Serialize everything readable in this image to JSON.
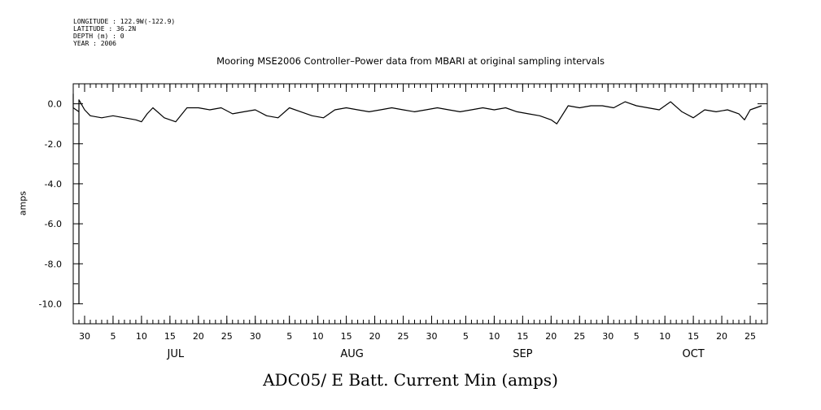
{
  "header": {
    "lines": [
      "LONGITUDE : 122.9W(-122.9)",
      "LATITUDE : 36.2N",
      "DEPTH (m) : 0",
      "YEAR : 2006"
    ]
  },
  "chart_data": {
    "type": "line",
    "title": "Mooring MSE2006 Controller–Power data from MBARI at original sampling intervals",
    "xlabel": "ADC05/ E Batt. Current Min (amps)",
    "ylabel": "amps",
    "ylim": [
      -11,
      1
    ],
    "yticks": [
      0,
      -2,
      -4,
      -6,
      -8,
      -10
    ],
    "ytick_labels": [
      "0.0",
      "-2.0",
      "-4.0",
      "-6.0",
      "-8.0",
      "-10.0"
    ],
    "x_range": [
      "2006-06-28",
      "2006-10-28"
    ],
    "xtick_day_labels": [
      {
        "date": "2006-06-30",
        "label": "30"
      },
      {
        "date": "2006-07-05",
        "label": "5"
      },
      {
        "date": "2006-07-10",
        "label": "10"
      },
      {
        "date": "2006-07-15",
        "label": "15"
      },
      {
        "date": "2006-07-20",
        "label": "20"
      },
      {
        "date": "2006-07-25",
        "label": "25"
      },
      {
        "date": "2006-07-30",
        "label": "30"
      },
      {
        "date": "2006-08-05",
        "label": "5"
      },
      {
        "date": "2006-08-10",
        "label": "10"
      },
      {
        "date": "2006-08-15",
        "label": "15"
      },
      {
        "date": "2006-08-20",
        "label": "20"
      },
      {
        "date": "2006-08-25",
        "label": "25"
      },
      {
        "date": "2006-08-30",
        "label": "30"
      },
      {
        "date": "2006-09-05",
        "label": "5"
      },
      {
        "date": "2006-09-10",
        "label": "10"
      },
      {
        "date": "2006-09-15",
        "label": "15"
      },
      {
        "date": "2006-09-20",
        "label": "20"
      },
      {
        "date": "2006-09-25",
        "label": "25"
      },
      {
        "date": "2006-09-30",
        "label": "30"
      },
      {
        "date": "2006-10-05",
        "label": "5"
      },
      {
        "date": "2006-10-10",
        "label": "10"
      },
      {
        "date": "2006-10-15",
        "label": "15"
      },
      {
        "date": "2006-10-20",
        "label": "20"
      },
      {
        "date": "2006-10-25",
        "label": "25"
      }
    ],
    "month_labels": [
      {
        "date": "2006-07-16",
        "label": "JUL"
      },
      {
        "date": "2006-08-16",
        "label": "AUG"
      },
      {
        "date": "2006-09-15",
        "label": "SEP"
      },
      {
        "date": "2006-10-15",
        "label": "OCT"
      }
    ],
    "series": [
      {
        "x": [
          "2006-06-28",
          "2006-06-28",
          "2006-06-29",
          "2006-06-29",
          "2006-06-29",
          "2006-06-30",
          "2006-07-01",
          "2006-07-03",
          "2006-07-05",
          "2006-07-07",
          "2006-07-09",
          "2006-07-10",
          "2006-07-11",
          "2006-07-12",
          "2006-07-14",
          "2006-07-16",
          "2006-07-18",
          "2006-07-20",
          "2006-07-22",
          "2006-07-24",
          "2006-07-26",
          "2006-07-28",
          "2006-07-30",
          "2006-08-01",
          "2006-08-03",
          "2006-08-05",
          "2006-08-07",
          "2006-08-09",
          "2006-08-11",
          "2006-08-13",
          "2006-08-15",
          "2006-08-17",
          "2006-08-19",
          "2006-08-21",
          "2006-08-23",
          "2006-08-25",
          "2006-08-27",
          "2006-08-29",
          "2006-08-31",
          "2006-09-02",
          "2006-09-04",
          "2006-09-06",
          "2006-09-08",
          "2006-09-10",
          "2006-09-12",
          "2006-09-14",
          "2006-09-16",
          "2006-09-18",
          "2006-09-20",
          "2006-09-21",
          "2006-09-23",
          "2006-09-25",
          "2006-09-27",
          "2006-09-29",
          "2006-10-01",
          "2006-10-03",
          "2006-10-05",
          "2006-10-07",
          "2006-10-09",
          "2006-10-11",
          "2006-10-13",
          "2006-10-15",
          "2006-10-17",
          "2006-10-19",
          "2006-10-21",
          "2006-10-23",
          "2006-10-24",
          "2006-10-25",
          "2006-10-27"
        ],
        "y": [
          0.5,
          -0.2,
          -0.4,
          -10.0,
          0.2,
          -0.3,
          -0.6,
          -0.7,
          -0.6,
          -0.7,
          -0.8,
          -0.9,
          -0.5,
          -0.2,
          -0.7,
          -0.9,
          -0.2,
          -0.2,
          -0.3,
          -0.2,
          -0.5,
          -0.4,
          -0.3,
          -0.6,
          -0.7,
          -0.2,
          -0.4,
          -0.6,
          -0.7,
          -0.3,
          -0.2,
          -0.3,
          -0.4,
          -0.3,
          -0.2,
          -0.3,
          -0.4,
          -0.3,
          -0.2,
          -0.3,
          -0.4,
          -0.3,
          -0.2,
          -0.3,
          -0.2,
          -0.4,
          -0.5,
          -0.6,
          -0.8,
          -1.0,
          -0.1,
          -0.2,
          -0.1,
          -0.1,
          -0.2,
          0.1,
          -0.1,
          -0.2,
          -0.3,
          0.1,
          -0.4,
          -0.7,
          -0.3,
          -0.4,
          -0.3,
          -0.5,
          -0.8,
          -0.3,
          -0.1
        ]
      }
    ],
    "grid": false,
    "legend": "none"
  }
}
